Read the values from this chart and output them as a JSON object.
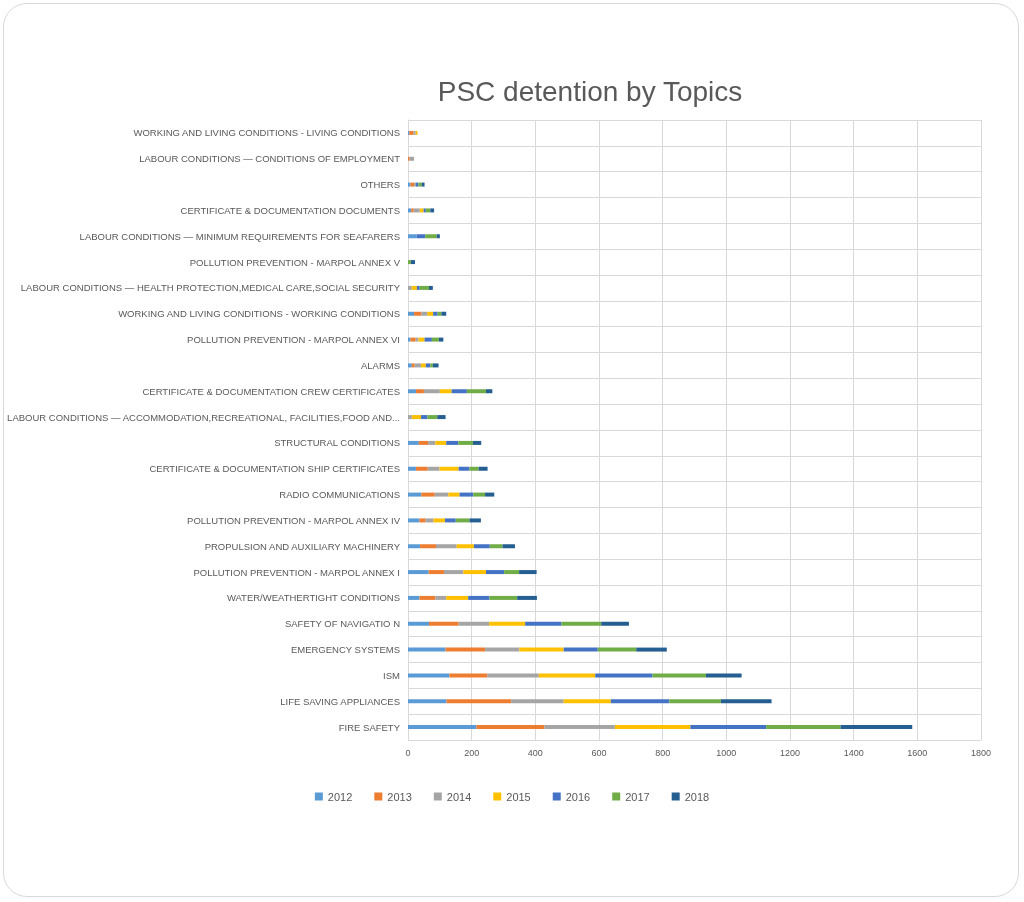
{
  "chart_data": {
    "type": "bar",
    "orientation": "horizontal",
    "stacked": true,
    "title": "PSC detention by Topics",
    "categories": [
      "WORKING AND LIVING CONDITIONS - LIVING CONDITIONS",
      "LABOUR CONDITIONS — CONDITIONS OF EMPLOYMENT",
      "OTHERS",
      "CERTIFICATE & DOCUMENTATION DOCUMENTS",
      "LABOUR CONDITIONS — MINIMUM REQUIREMENTS FOR SEAFARERS",
      "POLLUTION PREVENTION - MARPOL ANNEX V",
      "LABOUR CONDITIONS — HEALTH PROTECTION,MEDICAL CARE,SOCIAL SECURITY",
      "WORKING AND LIVING CONDITIONS - WORKING CONDITIONS",
      "POLLUTION PREVENTION - MARPOL ANNEX VI",
      "ALARMS",
      "CERTIFICATE & DOCUMENTATION CREW CERTIFICATES",
      "LABOUR CONDITIONS — ACCOMMODATION,RECREATIONAL, FACILITIES,FOOD AND...",
      "STRUCTURAL CONDITIONS",
      "CERTIFICATE & DOCUMENTATION SHIP CERTIFICATES",
      "RADIO COMMUNICATIONS",
      "POLLUTION PREVENTION - MARPOL ANNEX IV",
      "PROPULSION AND AUXILIARY MACHINERY",
      "POLLUTION PREVENTION - MARPOL ANNEX I",
      "WATER/WEATHERTIGHT CONDITIONS",
      "SAFETY OF NAVIGATIO N",
      "EMERGENCY SYSTEMS",
      "ISM",
      "LIFE SAVING APPLIANCES",
      "FIRE SAFETY"
    ],
    "series": [
      {
        "name": "2012",
        "color": "#5b9bd5",
        "values": [
          4,
          0,
          8,
          10,
          27,
          0,
          0,
          19,
          8,
          12,
          25,
          0,
          34,
          25,
          42,
          36,
          38,
          65,
          36,
          66,
          118,
          130,
          121,
          215
        ]
      },
      {
        "name": "2013",
        "color": "#ed7d31",
        "values": [
          13,
          5,
          11,
          8,
          0,
          0,
          0,
          23,
          16,
          9,
          25,
          0,
          29,
          37,
          42,
          19,
          50,
          48,
          50,
          93,
          124,
          119,
          203,
          214
        ]
      },
      {
        "name": "2014",
        "color": "#a5a5a5",
        "values": [
          7,
          14,
          6,
          19,
          0,
          0,
          12,
          19,
          9,
          20,
          50,
          12,
          23,
          37,
          43,
          25,
          65,
          61,
          34,
          96,
          108,
          162,
          165,
          221
        ]
      },
      {
        "name": "2015",
        "color": "#ffc000",
        "values": [
          6,
          0,
          0,
          12,
          0,
          0,
          16,
          18,
          19,
          15,
          37,
          29,
          34,
          60,
          35,
          36,
          54,
          71,
          69,
          113,
          139,
          177,
          148,
          237
        ]
      },
      {
        "name": "2016",
        "color": "#4472c4",
        "values": [
          0,
          0,
          8,
          7,
          27,
          0,
          9,
          14,
          23,
          14,
          48,
          20,
          38,
          34,
          43,
          34,
          50,
          57,
          67,
          114,
          107,
          180,
          184,
          238
        ]
      },
      {
        "name": "2017",
        "color": "#70ad47",
        "values": [
          0,
          0,
          10,
          14,
          36,
          9,
          29,
          12,
          22,
          8,
          60,
          31,
          46,
          29,
          37,
          43,
          40,
          47,
          87,
          125,
          121,
          168,
          162,
          234
        ]
      },
      {
        "name": "2018",
        "color": "#255e91",
        "values": [
          0,
          0,
          9,
          12,
          10,
          13,
          12,
          15,
          14,
          18,
          20,
          26,
          26,
          28,
          29,
          36,
          39,
          55,
          62,
          87,
          96,
          112,
          159,
          225
        ]
      }
    ],
    "xlim": [
      0,
      1800
    ],
    "xticks": [
      0,
      200,
      400,
      600,
      800,
      1000,
      1200,
      1400,
      1600,
      1800
    ],
    "grid": true,
    "legend": "bottom"
  }
}
